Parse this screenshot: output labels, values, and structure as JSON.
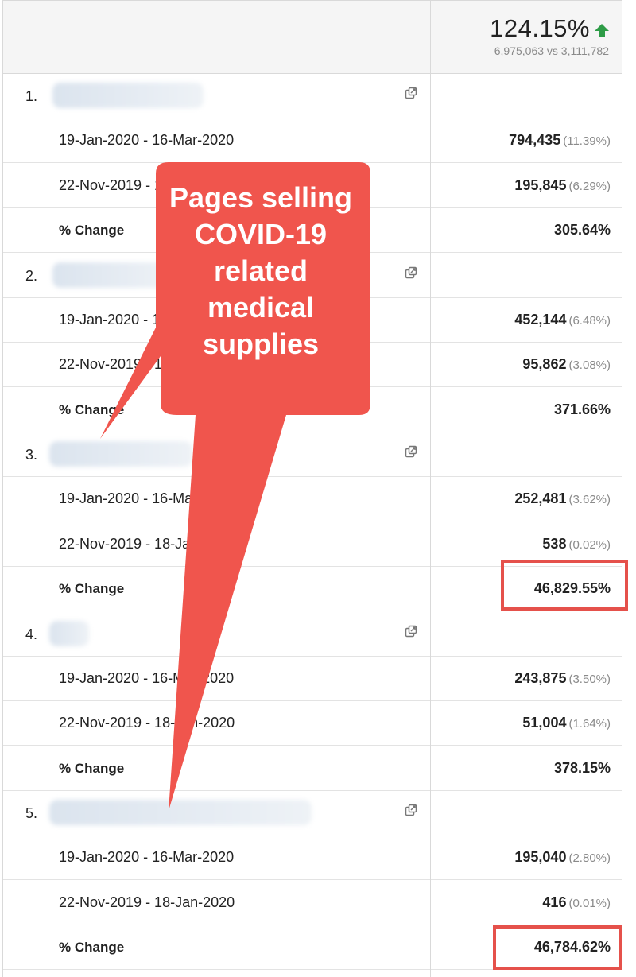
{
  "summary": {
    "change_percent": "124.15%",
    "comparison": "6,975,063 vs 3,111,782",
    "trend": "up",
    "trend_color": "#2e9c47"
  },
  "groups": [
    {
      "index": "1.",
      "rows": [
        {
          "label": "19-Jan-2020 - 16-Mar-2020",
          "value": "794,435",
          "share": "(11.39%)"
        },
        {
          "label": "22-Nov-2019 - 18-Jan-2020",
          "value": "195,845",
          "share": "(6.29%)"
        },
        {
          "label": "% Change",
          "value": "305.64%",
          "share": ""
        }
      ]
    },
    {
      "index": "2.",
      "rows": [
        {
          "label": "19-Jan-2020 - 16-Mar-2020",
          "value": "452,144",
          "share": "(6.48%)"
        },
        {
          "label": "22-Nov-2019 - 18-Jan-2020",
          "value": "95,862",
          "share": "(3.08%)"
        },
        {
          "label": "% Change",
          "value": "371.66%",
          "share": ""
        }
      ]
    },
    {
      "index": "3.",
      "rows": [
        {
          "label": "19-Jan-2020 - 16-Mar-2020",
          "value": "252,481",
          "share": "(3.62%)"
        },
        {
          "label": "22-Nov-2019 - 18-Jan-2020",
          "value": "538",
          "share": "(0.02%)"
        },
        {
          "label": "% Change",
          "value": "46,829.55%",
          "share": ""
        }
      ]
    },
    {
      "index": "4.",
      "rows": [
        {
          "label": "19-Jan-2020 - 16-Mar-2020",
          "value": "243,875",
          "share": "(3.50%)"
        },
        {
          "label": "22-Nov-2019 - 18-Jan-2020",
          "value": "51,004",
          "share": "(1.64%)"
        },
        {
          "label": "% Change",
          "value": "378.15%",
          "share": ""
        }
      ]
    },
    {
      "index": "5.",
      "rows": [
        {
          "label": "19-Jan-2020 - 16-Mar-2020",
          "value": "195,040",
          "share": "(2.80%)"
        },
        {
          "label": "22-Nov-2019 - 18-Jan-2020",
          "value": "416",
          "share": "(0.01%)"
        },
        {
          "label": "% Change",
          "value": "46,784.62%",
          "share": ""
        }
      ]
    }
  ],
  "callout": {
    "text": "Pages selling COVID-19 related medical supplies",
    "color": "#f0554d"
  },
  "highlight_color": "#e5514b"
}
